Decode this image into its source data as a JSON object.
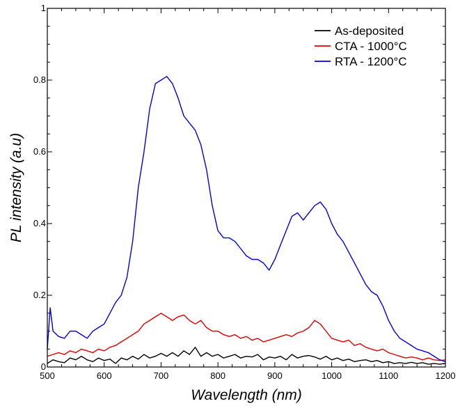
{
  "chart_data": {
    "type": "line",
    "title": "",
    "xlabel": "Wavelength (nm)",
    "ylabel": "PL intensity (a.u)",
    "xlim": [
      500,
      1200
    ],
    "ylim": [
      0,
      1
    ],
    "xticks": [
      500,
      600,
      700,
      800,
      900,
      1000,
      1100,
      1200
    ],
    "xtick_labels": [
      "500",
      "600",
      "700",
      "800",
      "900",
      "1000",
      "1100",
      "1200"
    ],
    "yticks": [
      0,
      0.2,
      0.4,
      0.6,
      0.8,
      1
    ],
    "ytick_labels": [
      "0",
      "0.2",
      "0.4",
      "0.6",
      "0.8",
      "1"
    ],
    "grid": false,
    "legend_position": "top-right",
    "series": [
      {
        "name": "As-deposited",
        "color": "#000000",
        "x": [
          500,
          510,
          520,
          530,
          540,
          550,
          560,
          570,
          580,
          590,
          600,
          610,
          620,
          630,
          640,
          650,
          660,
          670,
          680,
          690,
          700,
          710,
          720,
          730,
          740,
          750,
          760,
          770,
          780,
          790,
          800,
          810,
          820,
          830,
          840,
          850,
          860,
          870,
          880,
          890,
          900,
          910,
          920,
          930,
          940,
          950,
          960,
          970,
          980,
          990,
          1000,
          1010,
          1020,
          1030,
          1040,
          1050,
          1060,
          1070,
          1080,
          1090,
          1100,
          1110,
          1120,
          1130,
          1140,
          1150,
          1160,
          1170,
          1180,
          1190,
          1200
        ],
        "y": [
          0.01,
          0.02,
          0.015,
          0.012,
          0.025,
          0.02,
          0.03,
          0.02,
          0.015,
          0.025,
          0.018,
          0.022,
          0.01,
          0.025,
          0.02,
          0.03,
          0.022,
          0.035,
          0.025,
          0.03,
          0.038,
          0.03,
          0.04,
          0.03,
          0.045,
          0.035,
          0.055,
          0.03,
          0.04,
          0.03,
          0.035,
          0.025,
          0.03,
          0.035,
          0.025,
          0.03,
          0.028,
          0.035,
          0.02,
          0.028,
          0.025,
          0.03,
          0.02,
          0.035,
          0.025,
          0.03,
          0.032,
          0.028,
          0.022,
          0.03,
          0.02,
          0.025,
          0.018,
          0.022,
          0.015,
          0.018,
          0.02,
          0.015,
          0.018,
          0.012,
          0.015,
          0.01,
          0.012,
          0.01,
          0.013,
          0.01,
          0.012,
          0.008,
          0.01,
          0.008,
          0.01
        ]
      },
      {
        "name": "CTA - 1000°C",
        "color": "#e00000",
        "x": [
          500,
          510,
          520,
          530,
          540,
          550,
          560,
          570,
          580,
          590,
          600,
          610,
          620,
          630,
          640,
          650,
          660,
          670,
          680,
          690,
          700,
          710,
          720,
          730,
          740,
          750,
          760,
          770,
          780,
          790,
          800,
          810,
          820,
          830,
          840,
          850,
          860,
          870,
          880,
          890,
          900,
          910,
          920,
          930,
          940,
          950,
          960,
          970,
          980,
          990,
          1000,
          1010,
          1020,
          1030,
          1040,
          1050,
          1060,
          1070,
          1080,
          1090,
          1100,
          1110,
          1120,
          1130,
          1140,
          1150,
          1160,
          1170,
          1180,
          1190,
          1200
        ],
        "y": [
          0.03,
          0.035,
          0.04,
          0.035,
          0.045,
          0.04,
          0.05,
          0.045,
          0.04,
          0.05,
          0.045,
          0.055,
          0.06,
          0.07,
          0.08,
          0.09,
          0.1,
          0.12,
          0.13,
          0.14,
          0.15,
          0.14,
          0.13,
          0.14,
          0.145,
          0.13,
          0.12,
          0.13,
          0.11,
          0.1,
          0.1,
          0.09,
          0.085,
          0.09,
          0.08,
          0.085,
          0.075,
          0.08,
          0.07,
          0.075,
          0.08,
          0.085,
          0.09,
          0.085,
          0.095,
          0.1,
          0.11,
          0.13,
          0.12,
          0.1,
          0.08,
          0.075,
          0.07,
          0.075,
          0.06,
          0.065,
          0.055,
          0.05,
          0.045,
          0.05,
          0.04,
          0.035,
          0.03,
          0.025,
          0.028,
          0.025,
          0.02,
          0.025,
          0.02,
          0.018,
          0.02
        ]
      },
      {
        "name": "RTA - 1200°C",
        "color": "#0000e0",
        "x": [
          500,
          505,
          510,
          520,
          530,
          540,
          550,
          560,
          570,
          580,
          590,
          600,
          610,
          620,
          630,
          640,
          650,
          660,
          670,
          680,
          690,
          700,
          710,
          720,
          730,
          740,
          750,
          760,
          770,
          780,
          790,
          800,
          810,
          820,
          830,
          840,
          850,
          860,
          870,
          880,
          890,
          900,
          910,
          920,
          930,
          940,
          950,
          960,
          970,
          980,
          990,
          1000,
          1010,
          1020,
          1030,
          1040,
          1050,
          1060,
          1070,
          1080,
          1090,
          1100,
          1110,
          1120,
          1130,
          1140,
          1150,
          1160,
          1170,
          1180,
          1190,
          1200
        ],
        "y": [
          0.05,
          0.165,
          0.1,
          0.085,
          0.08,
          0.1,
          0.1,
          0.09,
          0.08,
          0.1,
          0.11,
          0.12,
          0.15,
          0.18,
          0.2,
          0.25,
          0.35,
          0.5,
          0.6,
          0.72,
          0.79,
          0.8,
          0.81,
          0.79,
          0.75,
          0.7,
          0.68,
          0.66,
          0.62,
          0.55,
          0.45,
          0.38,
          0.36,
          0.36,
          0.35,
          0.33,
          0.31,
          0.3,
          0.3,
          0.29,
          0.27,
          0.3,
          0.34,
          0.38,
          0.42,
          0.43,
          0.41,
          0.43,
          0.45,
          0.46,
          0.44,
          0.4,
          0.37,
          0.35,
          0.32,
          0.29,
          0.26,
          0.23,
          0.21,
          0.2,
          0.17,
          0.13,
          0.1,
          0.08,
          0.07,
          0.06,
          0.05,
          0.045,
          0.04,
          0.03,
          0.02,
          0.015
        ]
      }
    ]
  }
}
